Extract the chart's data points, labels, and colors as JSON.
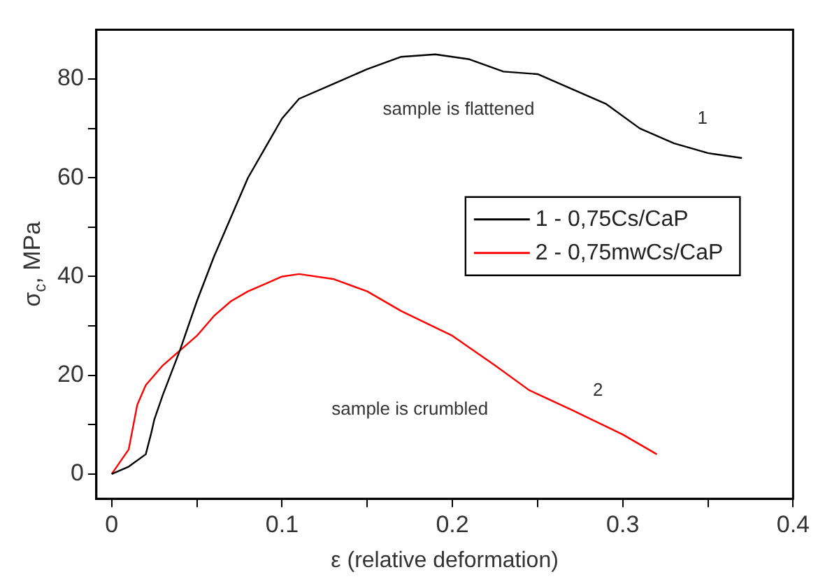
{
  "chart_data": {
    "type": "line",
    "xlabel": "ε (relative deformation)",
    "ylabel": "σ$_{c}$, MPa",
    "xlim": [
      -0.009,
      0.4
    ],
    "ylim": [
      -5,
      90
    ],
    "xticks": [
      0,
      {
        "value": 0.05,
        "label": null
      },
      0.1,
      {
        "value": 0.15,
        "label": null
      },
      0.2,
      {
        "value": 0.25,
        "label": null
      },
      0.3,
      {
        "value": 0.35,
        "label": null
      },
      0.4
    ],
    "yticks": [
      0,
      {
        "value": 10,
        "label": null
      },
      20,
      {
        "value": 30,
        "label": null
      },
      40,
      {
        "value": 50,
        "label": null
      },
      60,
      {
        "value": 70,
        "label": null
      },
      80
    ],
    "grid": false,
    "legend": "right",
    "marker": "none",
    "line_style": "solid",
    "series": [
      {
        "name": "1 - 0,75Cs/CaP",
        "color": "#000000",
        "x": [
          0,
          0.01,
          0.02,
          0.023,
          0.025,
          0.03,
          0.04,
          0.05,
          0.06,
          0.07,
          0.08,
          0.09,
          0.1,
          0.11,
          0.13,
          0.15,
          0.17,
          0.19,
          0.21,
          0.23,
          0.25,
          0.27,
          0.29,
          0.31,
          0.33,
          0.35,
          0.37
        ],
        "values": [
          0,
          1.5,
          4,
          8,
          11,
          16,
          25,
          35,
          44,
          52,
          60,
          66,
          72,
          76,
          79,
          82,
          84.5,
          85,
          84,
          81.5,
          81,
          78,
          75,
          70,
          67,
          65,
          64
        ]
      },
      {
        "name": "2 - 0,75mwCs/CaP",
        "color": "#ff0000",
        "x": [
          0,
          0.01,
          0.015,
          0.02,
          0.03,
          0.04,
          0.05,
          0.06,
          0.07,
          0.08,
          0.09,
          0.1,
          0.11,
          0.13,
          0.15,
          0.17,
          0.2,
          0.225,
          0.245,
          0.27,
          0.3,
          0.32
        ],
        "values": [
          0,
          5,
          14,
          18,
          22,
          25,
          28,
          32,
          35,
          37,
          38.5,
          40,
          40.5,
          39.5,
          37,
          33,
          28,
          22,
          17,
          13,
          8,
          4
        ]
      }
    ],
    "annotations": [
      "sample is flattened",
      "1",
      "sample is crumbled",
      "2"
    ]
  }
}
